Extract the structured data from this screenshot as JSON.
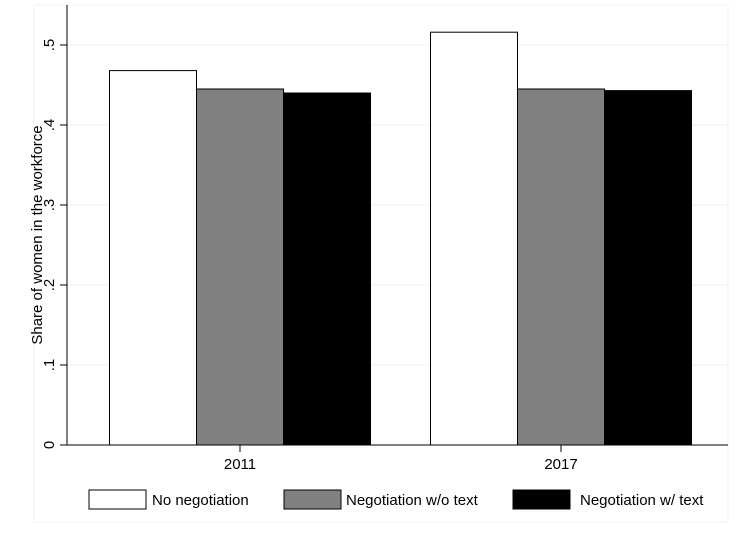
{
  "chart_data": {
    "type": "bar",
    "title": "",
    "xlabel": "",
    "ylabel": "Share of women in the workforce",
    "categories": [
      "2011",
      "2017"
    ],
    "series": [
      {
        "name": "No negotiation",
        "color": "#ffffff",
        "values": [
          0.468,
          0.516
        ]
      },
      {
        "name": "Negotiation w/o text",
        "color": "#808080",
        "values": [
          0.445,
          0.445
        ]
      },
      {
        "name": "Negotiation w/ text",
        "color": "#000000",
        "values": [
          0.44,
          0.443
        ]
      }
    ],
    "ylim": [
      0,
      0.55
    ],
    "yticks": [
      0,
      0.1,
      0.2,
      0.3,
      0.4,
      0.5
    ],
    "ytick_labels": [
      "0",
      ".1",
      ".2",
      ".3",
      ".4",
      ".5"
    ],
    "grid": true,
    "legend": "bottom"
  }
}
